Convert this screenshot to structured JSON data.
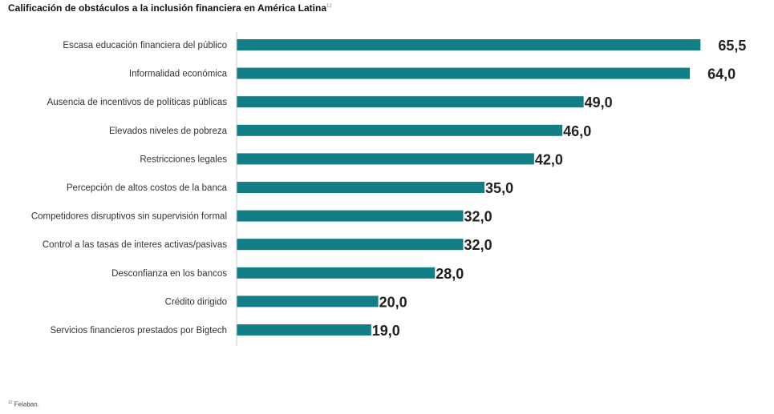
{
  "title": {
    "text": "Calificación de obstáculos a la inclusión financiera en América Latina",
    "note_ref": "12"
  },
  "footnote": {
    "ref": "12",
    "text": "Felaban."
  },
  "colors": {
    "bar": "#127f86",
    "axis": "#c8c8c8"
  },
  "chart_data": {
    "type": "bar",
    "orientation": "horizontal",
    "categories": [
      "Escasa educación financiera del público",
      "Informalidad económica",
      "Ausencia de incentivos de políticas públicas",
      "Elevados niveles de pobreza",
      "Restricciones legales",
      "Percepción de altos costos de la banca",
      "Competidores disruptivos sin supervisión formal",
      "Control a las tasas de interes activas/pasivas",
      "Desconfianza en los bancos",
      "Crédito dirigido",
      "Servicios financieros prestados por Bigtech"
    ],
    "values": [
      65.5,
      64.0,
      49.0,
      46.0,
      42.0,
      35.0,
      32.0,
      32.0,
      28.0,
      20.0,
      19.0
    ],
    "value_labels": [
      "65,5",
      "64,0",
      "49,0",
      "46,0",
      "42,0",
      "35,0",
      "32,0",
      "32,0",
      "28,0",
      "20,0",
      "19,0"
    ],
    "xlim": [
      0,
      70
    ],
    "grid": false,
    "legend": "none"
  }
}
